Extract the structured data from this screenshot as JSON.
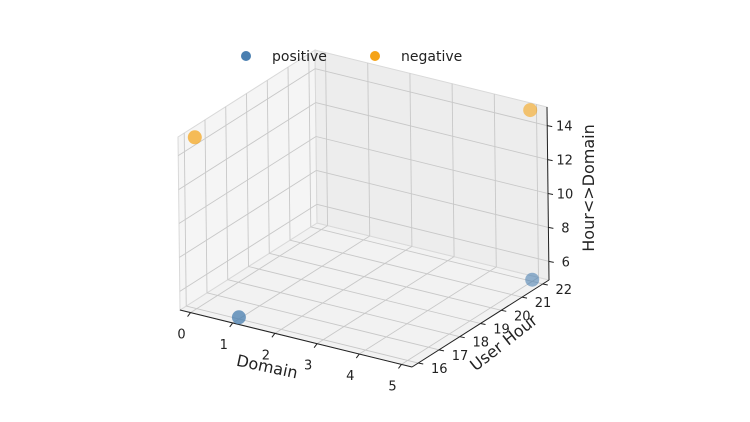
{
  "chart_data": {
    "type": "scatter",
    "projection": "3d",
    "xlabel": "Domain",
    "ylabel": "User Hour",
    "zlabel": "Hour<>Domain",
    "xticks": [
      "0",
      "1",
      "2",
      "3",
      "4",
      "5"
    ],
    "yticks": [
      "16",
      "17",
      "18",
      "19",
      "20",
      "21",
      "22"
    ],
    "zticks": [
      "6",
      "8",
      "10",
      "12",
      "14"
    ],
    "xlim": [
      -0.25,
      5.25
    ],
    "ylim": [
      15.7,
      22.3
    ],
    "zlim": [
      4.9,
      15.1
    ],
    "grid": true,
    "legend_position": "top-center",
    "series": [
      {
        "name": "positive",
        "color": "#4a7fb0",
        "points": [
          {
            "x": 5,
            "y": 22,
            "z": 5
          },
          {
            "x": 1,
            "y": 16,
            "z": 5
          }
        ]
      },
      {
        "name": "negative",
        "color": "#f5a316",
        "points": [
          {
            "x": 0,
            "y": 16,
            "z": 15
          },
          {
            "x": 5,
            "y": 22,
            "z": 15
          }
        ]
      }
    ]
  }
}
